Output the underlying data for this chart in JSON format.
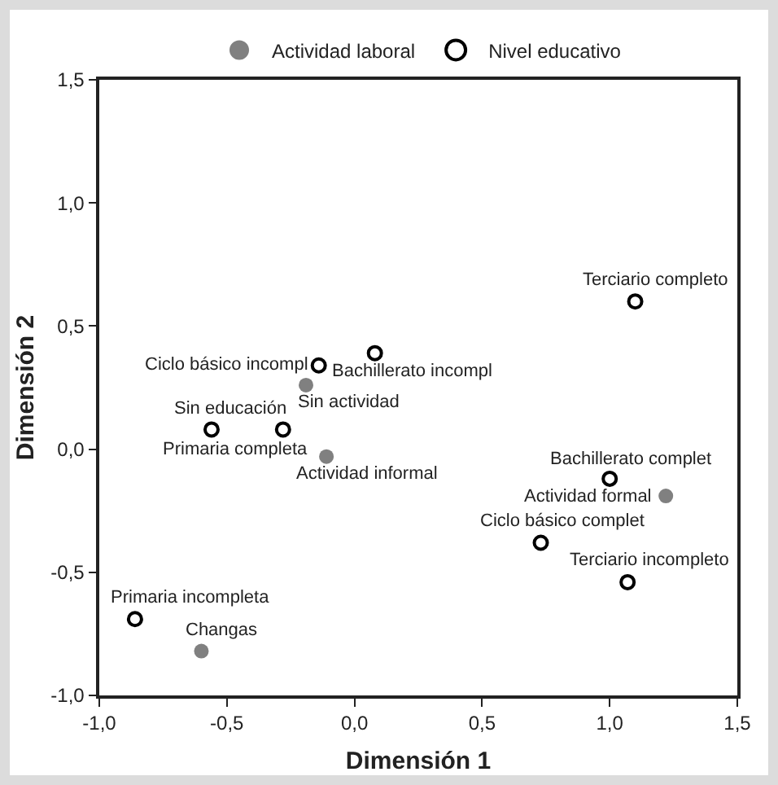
{
  "chart_data": {
    "type": "scatter",
    "xlabel": "Dimensión 1",
    "ylabel": "Dimensión 2",
    "xlim": [
      -1.0,
      1.5
    ],
    "ylim": [
      -1.0,
      1.5
    ],
    "xticks": [
      {
        "value": -1.0,
        "label": "-1,0"
      },
      {
        "value": -0.5,
        "label": "-0,5"
      },
      {
        "value": 0,
        "label": "0,0"
      },
      {
        "value": 0.5,
        "label": "0,5"
      },
      {
        "value": 1.0,
        "label": "1,0"
      },
      {
        "value": 1.5,
        "label": "1,5"
      }
    ],
    "yticks": [
      {
        "value": -1.0,
        "label": "-1,0"
      },
      {
        "value": -0.5,
        "label": "-0,5"
      },
      {
        "value": 0,
        "label": "0,0"
      },
      {
        "value": 0.5,
        "label": "0,5"
      },
      {
        "value": 1.0,
        "label": "1,0"
      },
      {
        "value": 1.5,
        "label": "1,5"
      }
    ],
    "grid": false,
    "legend": "top",
    "marker": "circle",
    "series": [
      {
        "name": "Actividad laboral",
        "color": "#808080",
        "x": [
          -0.19,
          -0.11,
          1.22,
          -0.6
        ],
        "values": [
          0.26,
          -0.03,
          -0.19,
          -0.82
        ]
      },
      {
        "name": "Nivel educativo",
        "color": "#000000",
        "x": [
          1.1,
          0.08,
          -0.14,
          -0.56,
          -0.28,
          1.0,
          0.73,
          1.07,
          -0.86
        ],
        "values": [
          0.6,
          0.39,
          0.34,
          0.08,
          0.08,
          -0.12,
          -0.38,
          -0.54,
          -0.69
        ]
      }
    ],
    "annotations": [
      {
        "text": "Sin actividad",
        "x": -0.19,
        "y": 0.26
      },
      {
        "text": "Actividad informal",
        "x": -0.11,
        "y": -0.03
      },
      {
        "text": "Actividad formal",
        "x": 1.22,
        "y": -0.19
      },
      {
        "text": "Changas",
        "x": -0.6,
        "y": -0.82
      },
      {
        "text": "Terciario completo",
        "x": 1.1,
        "y": 0.6
      },
      {
        "text": "Bachillerato incompl",
        "x": 0.08,
        "y": 0.39
      },
      {
        "text": "Ciclo básico incompl",
        "x": -0.14,
        "y": 0.34
      },
      {
        "text": "Sin educación",
        "x": -0.56,
        "y": 0.08
      },
      {
        "text": "Primaria completa",
        "x": -0.28,
        "y": 0.08
      },
      {
        "text": "Bachillerato complet",
        "x": 1.0,
        "y": -0.12
      },
      {
        "text": "Ciclo básico complet",
        "x": 0.73,
        "y": -0.38
      },
      {
        "text": "Terciario incompleto",
        "x": 1.07,
        "y": -0.54
      },
      {
        "text": "Primaria incompleta",
        "x": -0.86,
        "y": -0.69
      }
    ]
  }
}
